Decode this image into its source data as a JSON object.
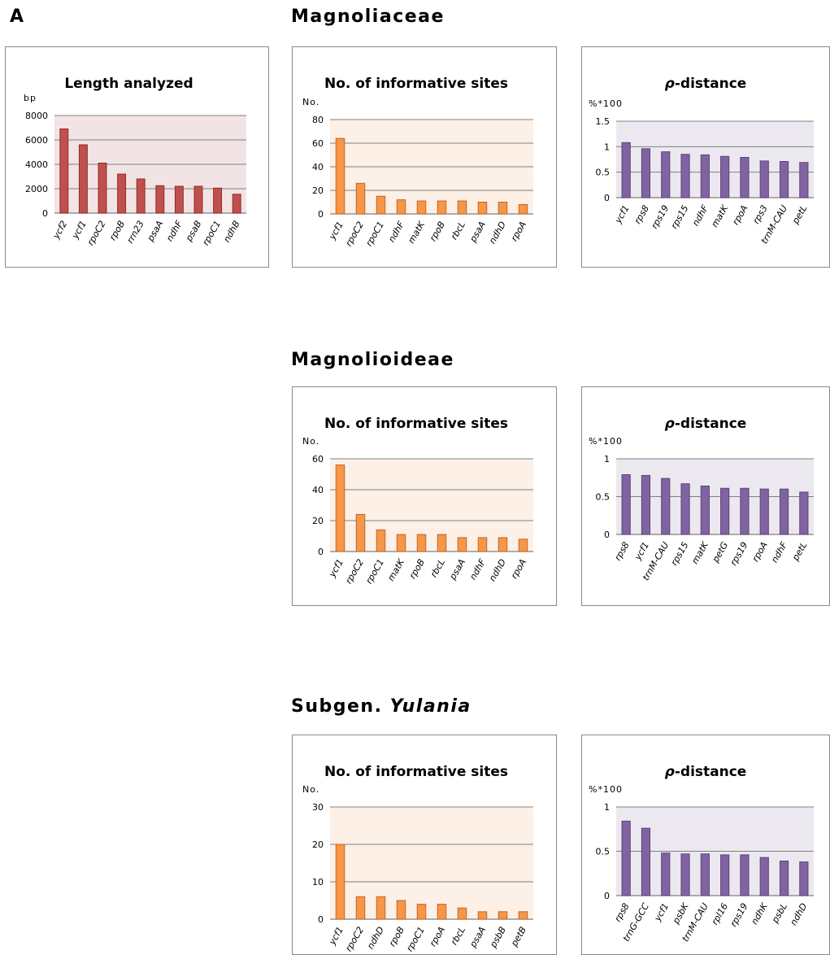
{
  "panel_label": "A",
  "sections": {
    "family": {
      "prefix": "Magnoliaceae",
      "italic": ""
    },
    "subfamily": {
      "prefix": "Magnolioideae",
      "italic": ""
    },
    "subgenus": {
      "prefix": "Subgen. ",
      "italic": "Yulania"
    }
  },
  "colors": {
    "length_bar": "#c0504d",
    "length_edge": "#8c2d2a",
    "length_bg": "#f2e4e4",
    "sites_bar": "#f79646",
    "sites_edge": "#c0672a",
    "sites_bg": "#fdf0e6",
    "dist_bar": "#8064a2",
    "dist_edge": "#5a4578",
    "dist_bg": "#ebe9ef",
    "grid": "#808080",
    "box_border": "#8a8a8a"
  },
  "chart_data": [
    {
      "id": "family-length",
      "type": "bar",
      "section": "Magnoliaceae",
      "title": "Length analyzed",
      "ylabel": "bp",
      "ylim": [
        0,
        8000
      ],
      "yticks": [
        "0",
        "2000",
        "4000",
        "6000",
        "8000"
      ],
      "categories": [
        "ycf2",
        "ycf1",
        "rpoC2",
        "rpoB",
        "rrn23",
        "psaA",
        "ndhF",
        "psaB",
        "rpoC1",
        "ndhB"
      ],
      "values": [
        6900,
        5600,
        4100,
        3200,
        2800,
        2250,
        2200,
        2200,
        2050,
        1550
      ]
    },
    {
      "id": "family-sites",
      "type": "bar",
      "section": "Magnoliaceae",
      "title": "No. of informative sites",
      "ylabel": "No.",
      "ylim": [
        0,
        80
      ],
      "yticks": [
        "0",
        "20",
        "40",
        "60",
        "80"
      ],
      "categories": [
        "ycf1",
        "rpoC2",
        "rpoC1",
        "ndhF",
        "matK",
        "rpoB",
        "rbcL",
        "psaA",
        "ndhD",
        "rpoA"
      ],
      "values": [
        64,
        26,
        15,
        12,
        11,
        11,
        11,
        10,
        10,
        8
      ]
    },
    {
      "id": "family-distance",
      "type": "bar",
      "section": "Magnoliaceae",
      "title": "-distance",
      "title_symbol": "ρ",
      "ylabel": "%*100",
      "ylim": [
        0,
        1.5
      ],
      "yticks": [
        "0",
        "0.5",
        "1",
        "1.5"
      ],
      "categories": [
        "ycf1",
        "rps8",
        "rps19",
        "rps15",
        "ndhF",
        "matK",
        "rpoA",
        "rps3",
        "trnM-CAU",
        "petL"
      ],
      "values": [
        1.08,
        0.96,
        0.9,
        0.85,
        0.84,
        0.81,
        0.79,
        0.72,
        0.71,
        0.69
      ]
    },
    {
      "id": "subfamily-sites",
      "type": "bar",
      "section": "Magnolioideae",
      "title": "No. of informative sites",
      "ylabel": "No.",
      "ylim": [
        0,
        60
      ],
      "yticks": [
        "0",
        "20",
        "40",
        "60"
      ],
      "categories": [
        "ycf1",
        "rpoC2",
        "rpoC1",
        "matK",
        "rpoB",
        "rbcL",
        "psaA",
        "ndhF",
        "ndhD",
        "rpoA"
      ],
      "values": [
        56,
        24,
        14,
        11,
        11,
        11,
        9,
        9,
        9,
        8
      ]
    },
    {
      "id": "subfamily-distance",
      "type": "bar",
      "section": "Magnolioideae",
      "title": "-distance",
      "title_symbol": "ρ",
      "ylabel": "%*100",
      "ylim": [
        0,
        1
      ],
      "yticks": [
        "0",
        "0.5",
        "1"
      ],
      "categories": [
        "rps8",
        "ycf1",
        "trnM-CAU",
        "rps15",
        "matK",
        "petG",
        "rps19",
        "rpoA",
        "ndhF",
        "petL"
      ],
      "values": [
        0.79,
        0.78,
        0.74,
        0.67,
        0.64,
        0.61,
        0.61,
        0.6,
        0.6,
        0.56
      ]
    },
    {
      "id": "subgenus-sites",
      "type": "bar",
      "section": "Subgen. Yulania",
      "title": "No. of informative sites",
      "ylabel": "No.",
      "ylim": [
        0,
        30
      ],
      "yticks": [
        "0",
        "10",
        "20",
        "30"
      ],
      "categories": [
        "ycf1",
        "rpoC2",
        "ndhD",
        "rpoB",
        "rpoC1",
        "rpoA",
        "rbcL",
        "psaA",
        "psbB",
        "petB"
      ],
      "values": [
        20,
        6,
        6,
        5,
        4,
        4,
        3,
        2,
        2,
        2
      ]
    },
    {
      "id": "subgenus-distance",
      "type": "bar",
      "section": "Subgen. Yulania",
      "title": "-distance",
      "title_symbol": "ρ",
      "ylabel": "%*100",
      "ylim": [
        0,
        1
      ],
      "yticks": [
        "0",
        "0.5",
        "1"
      ],
      "categories": [
        "rps8",
        "trnG-GCC",
        "ycf1",
        "psbK",
        "trnM-CAU",
        "rpl16",
        "rps19",
        "ndhK",
        "psbL",
        "ndhD"
      ],
      "values": [
        0.84,
        0.76,
        0.48,
        0.47,
        0.47,
        0.46,
        0.46,
        0.43,
        0.39,
        0.38
      ]
    }
  ]
}
